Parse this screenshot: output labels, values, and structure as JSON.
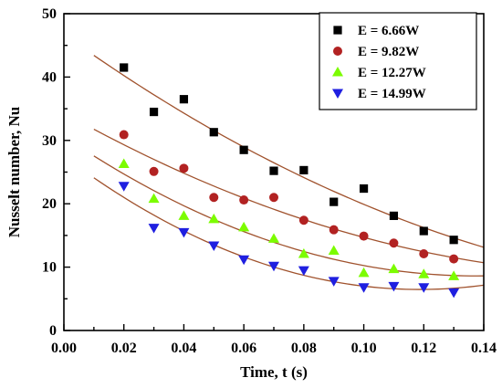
{
  "chart_data": {
    "type": "scatter",
    "xlabel": "Time, t (s)",
    "ylabel": "Nusselt number, Nu",
    "xlim": [
      0.0,
      0.14
    ],
    "ylim": [
      0,
      50
    ],
    "x_ticks": [
      "0.00",
      "0.02",
      "0.04",
      "0.06",
      "0.08",
      "0.10",
      "0.12",
      "0.14"
    ],
    "y_ticks": [
      "0",
      "10",
      "20",
      "30",
      "40",
      "50"
    ],
    "grid": false,
    "legend_position": "top-right",
    "fit_line_color": "#a0522d",
    "fit_x_range": [
      0.01,
      0.14
    ],
    "series": [
      {
        "name": "E =  6.66W",
        "marker": "square",
        "color": "#000000",
        "x": [
          0.02,
          0.03,
          0.04,
          0.05,
          0.06,
          0.07,
          0.08,
          0.09,
          0.1,
          0.11,
          0.12,
          0.13
        ],
        "y": [
          41.5,
          34.5,
          36.5,
          31.3,
          28.5,
          25.2,
          25.3,
          20.3,
          22.4,
          18.1,
          15.7,
          14.3
        ]
      },
      {
        "name": "E =  9.82W",
        "marker": "circle",
        "color": "#b22222",
        "x": [
          0.02,
          0.03,
          0.04,
          0.05,
          0.06,
          0.07,
          0.08,
          0.09,
          0.1,
          0.11,
          0.12,
          0.13
        ],
        "y": [
          30.9,
          25.1,
          25.6,
          21.0,
          20.6,
          21.0,
          17.4,
          15.9,
          14.9,
          13.8,
          12.1,
          11.3
        ]
      },
      {
        "name": "E = 12.27W",
        "marker": "triangle-up",
        "color": "#7cfc00",
        "x": [
          0.02,
          0.03,
          0.04,
          0.05,
          0.06,
          0.07,
          0.08,
          0.09,
          0.1,
          0.11,
          0.12,
          0.13
        ],
        "y": [
          26.3,
          20.8,
          18.1,
          17.6,
          16.3,
          14.5,
          12.1,
          12.6,
          9.1,
          9.7,
          8.9,
          8.6
        ]
      },
      {
        "name": "E = 14.99W",
        "marker": "triangle-down",
        "color": "#1f1fe0",
        "x": [
          0.02,
          0.03,
          0.04,
          0.05,
          0.06,
          0.07,
          0.08,
          0.09,
          0.1,
          0.11,
          0.12,
          0.13
        ],
        "y": [
          22.8,
          16.2,
          15.5,
          13.4,
          11.2,
          10.2,
          9.5,
          7.8,
          6.8,
          7.0,
          6.8,
          6.0
        ]
      }
    ]
  }
}
